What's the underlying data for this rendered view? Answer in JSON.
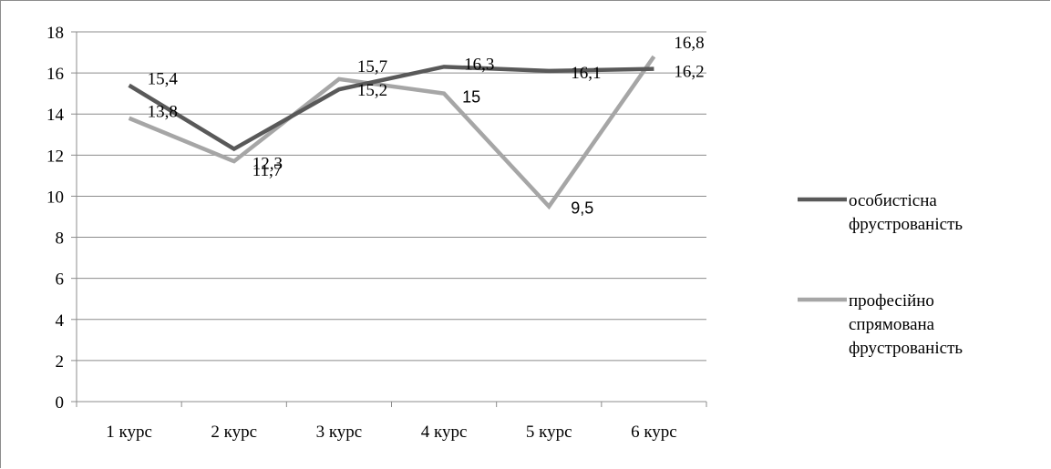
{
  "chart_data": {
    "type": "line",
    "categories": [
      "1 курс",
      "2 курс",
      "3 курс",
      "4 курс",
      "5 курс",
      "6 курс"
    ],
    "ylim": [
      0,
      18
    ],
    "yticks": [
      0,
      2,
      4,
      6,
      8,
      10,
      12,
      14,
      16,
      18
    ],
    "grid": true,
    "legend_position": "right",
    "series": [
      {
        "name": "особистісна фрустрованість",
        "legend_lines": [
          "особистісна",
          "фрустрованість"
        ],
        "color": "#595959",
        "values": [
          15.4,
          12.3,
          15.2,
          16.3,
          16.1,
          16.2
        ],
        "labels": [
          "15,4",
          "12,3",
          "15,2",
          "16,3",
          "16,1",
          "16,2"
        ]
      },
      {
        "name": "професійно спрямована фрустрованість",
        "legend_lines": [
          "професійно",
          "спрямована",
          "фрустрованість"
        ],
        "color": "#a6a6a6",
        "values": [
          13.8,
          11.7,
          15.7,
          15.0,
          9.5,
          16.8
        ],
        "labels": [
          "13,8",
          "11,7",
          "15,7",
          "15",
          "9,5",
          "16,8"
        ]
      }
    ]
  }
}
